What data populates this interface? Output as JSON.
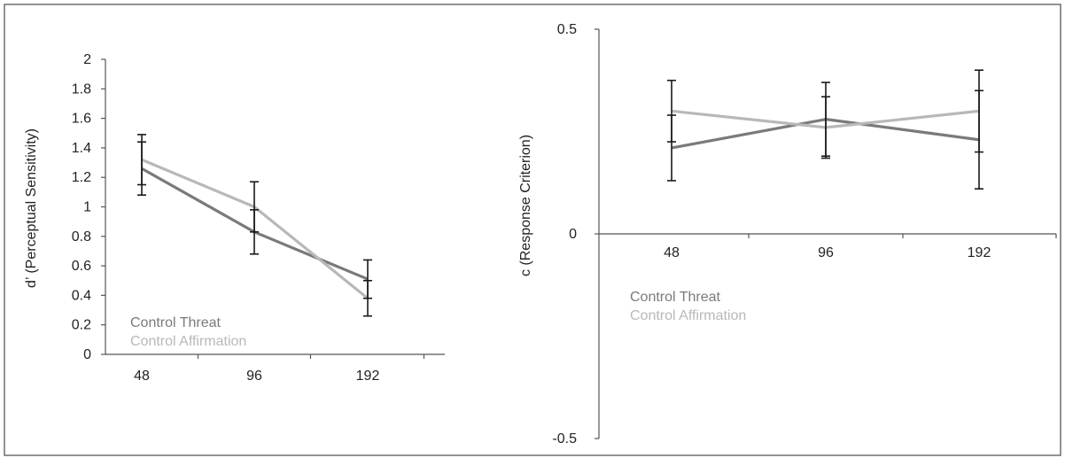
{
  "colors": {
    "threat": "#7a7a7a",
    "affirmation": "#b8b8b8",
    "axis": "#555555",
    "error": "#1a1a1a"
  },
  "chart_data": [
    {
      "type": "line",
      "ylabel": "d’ (Perceptual Sensitivity)",
      "xlabel": "",
      "categories": [
        "48",
        "96",
        "192"
      ],
      "ylim": [
        0,
        2
      ],
      "yticks": [
        0,
        0.2,
        0.4,
        0.6,
        0.8,
        1,
        1.2,
        1.4,
        1.6,
        1.8,
        2
      ],
      "ytick_labels": [
        "0",
        "0.2",
        "0.4",
        "0.6",
        "0.8",
        "1",
        "1.2",
        "1.4",
        "1.6",
        "1.8",
        "2"
      ],
      "legend_placement": "lower-left",
      "series": [
        {
          "name": "Control Threat",
          "color": "threat",
          "values": [
            1.26,
            0.83,
            0.51
          ],
          "errors": [
            0.18,
            0.15,
            0.13
          ]
        },
        {
          "name": "Control Affirmation",
          "color": "affirmation",
          "values": [
            1.32,
            1.0,
            0.38
          ],
          "errors": [
            0.17,
            0.17,
            0.12
          ]
        }
      ]
    },
    {
      "type": "line",
      "ylabel": "c (Response Criterion)",
      "xlabel": "",
      "categories": [
        "48",
        "96",
        "192"
      ],
      "ylim": [
        -0.5,
        0.5
      ],
      "yticks": [
        -0.5,
        0,
        0.5
      ],
      "ytick_labels": [
        "-0.5",
        "0",
        "0.5"
      ],
      "legend_placement": "lower-left",
      "series": [
        {
          "name": "Control Threat",
          "color": "threat",
          "values": [
            0.21,
            0.28,
            0.23
          ],
          "errors": [
            0.08,
            0.09,
            0.12
          ]
        },
        {
          "name": "Control Affirmation",
          "color": "affirmation",
          "values": [
            0.3,
            0.26,
            0.3
          ],
          "errors": [
            0.075,
            0.075,
            0.1
          ]
        }
      ]
    }
  ]
}
